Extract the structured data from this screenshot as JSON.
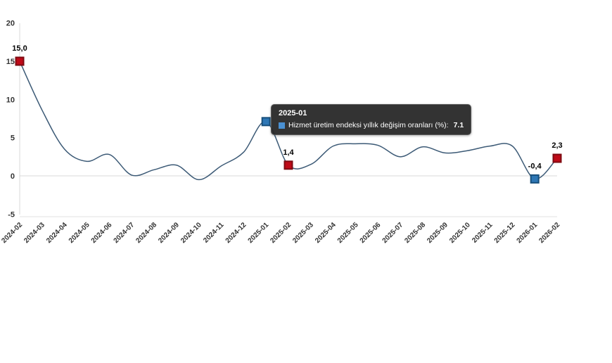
{
  "chart_data": {
    "type": "line",
    "title": "",
    "xlabel": "",
    "ylabel": "",
    "ylim": [
      -5,
      20
    ],
    "yticks": [
      20,
      15,
      10,
      5,
      0,
      -5
    ],
    "grid": "zero-line-only",
    "legend": "hidden (shown only inside hover tooltip)",
    "categories": [
      "2024-02",
      "2024-03",
      "2024-04",
      "2024-05",
      "2024-06",
      "2024-07",
      "2024-08",
      "2024-09",
      "2024-10",
      "2024-11",
      "2024-12",
      "2025-01",
      "2025-02",
      "2025-03",
      "2025-04",
      "2025-05",
      "2025-06",
      "2025-07",
      "2025-08",
      "2025-09",
      "2025-10",
      "2025-11",
      "2025-12",
      "2026-01",
      "2026-02"
    ],
    "series": [
      {
        "name": "Hizmet üretim endeksi yıllık değişim oranları (%)",
        "values": [
          15.0,
          8.6,
          3.5,
          1.9,
          2.8,
          0.1,
          0.8,
          1.4,
          -0.5,
          1.3,
          3.1,
          7.1,
          1.4,
          1.5,
          3.9,
          4.2,
          4.0,
          2.5,
          3.8,
          3.0,
          3.3,
          3.9,
          3.9,
          -0.4,
          2.3
        ]
      }
    ],
    "marked_points": [
      {
        "index": 0,
        "category": "2024-02",
        "label": "15,0",
        "marker": "red"
      },
      {
        "index": 11,
        "category": "2025-01",
        "label": "",
        "marker": "blue",
        "hovered": true
      },
      {
        "index": 12,
        "category": "2025-02",
        "label": "1,4",
        "marker": "red"
      },
      {
        "index": 23,
        "category": "2026-01",
        "label": "-0,4",
        "marker": "blue"
      },
      {
        "index": 24,
        "category": "2026-02",
        "label": "2,3",
        "marker": "red"
      }
    ],
    "colors": {
      "line": "#3c5a76",
      "marker_red_fill": "#bf0a18",
      "marker_red_border": "#7e0b12",
      "marker_blue_fill": "#2e77b5",
      "marker_blue_border": "#174f7c",
      "grid_line": "#d8d8d8",
      "axis_line": "#e2e2e2",
      "tick_text": "#333333"
    }
  },
  "tooltip": {
    "title": "2025-01",
    "series_label": "Hizmet üretim endeksi yıllık değişim oranları (%):",
    "value": "7.1",
    "swatch_color": "#4a90d2"
  }
}
